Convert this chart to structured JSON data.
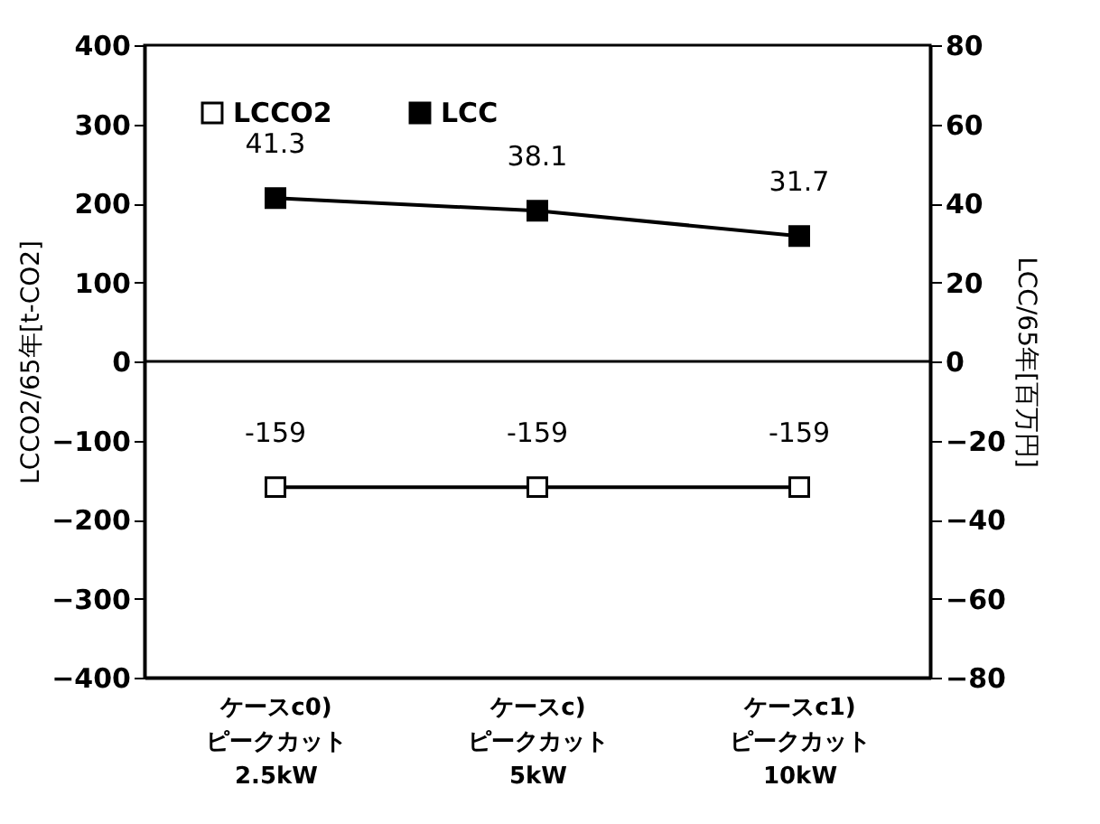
{
  "chart_data": {
    "type": "line",
    "categories": [
      "ケースc0)\nピークカット\n2.5kW",
      "ケースc)\nピークカット\n5kW",
      "ケースc1)\nピークカット\n10kW"
    ],
    "ylabel": "LCCO2/65年[t-CO2]",
    "y2label": "LCC/65年[百万円]",
    "ylim": [
      -400,
      400
    ],
    "yticks": [
      -400,
      -300,
      -200,
      -100,
      0,
      100,
      200,
      300,
      400
    ],
    "y2lim": [
      -80,
      80
    ],
    "y2ticks": [
      -80,
      -60,
      -40,
      -20,
      0,
      20,
      40,
      60,
      80
    ],
    "series": [
      {
        "name": "LCCO2",
        "color": "#ffffff",
        "values": [
          -159,
          -159,
          -159
        ]
      },
      {
        "name": "LCC",
        "color": "#000000",
        "values": [
          41.3,
          38.1,
          31.7
        ],
        "axis": "y2"
      }
    ],
    "data_labels": true,
    "marker": "square",
    "line_style": "solid",
    "grid": false,
    "legend": "top left",
    "ref_lines": [
      {
        "axis": "y",
        "value": 0
      }
    ]
  }
}
